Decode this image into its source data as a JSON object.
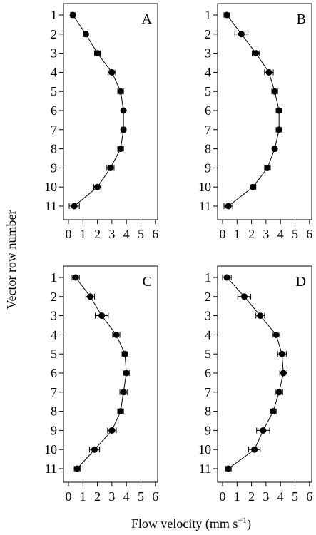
{
  "figure": {
    "ylabel": "Vector row number",
    "xlabel_main": "Flow velocity (mm s",
    "xlabel_sup": "−1",
    "xlabel_close": ")"
  },
  "chart_data": [
    {
      "type": "scatter",
      "panel_label": "A",
      "xlim": [
        0,
        6
      ],
      "x_ticks": [
        "0",
        "1",
        "2",
        "3",
        "4",
        "5",
        "6"
      ],
      "y_ticks": [
        "1",
        "2",
        "3",
        "4",
        "5",
        "6",
        "7",
        "8",
        "9",
        "10",
        "11"
      ],
      "y_reversed": true,
      "series": [
        {
          "rows": [
            1,
            2,
            3,
            4,
            5,
            6,
            7,
            8,
            9,
            10,
            11
          ],
          "velocity": [
            0.3,
            1.2,
            2.0,
            3.0,
            3.6,
            3.8,
            3.8,
            3.6,
            2.9,
            2.0,
            0.4
          ],
          "error": [
            0.15,
            0.15,
            0.2,
            0.25,
            0.2,
            0.15,
            0.15,
            0.2,
            0.25,
            0.25,
            0.35
          ]
        }
      ]
    },
    {
      "type": "scatter",
      "panel_label": "B",
      "xlim": [
        0,
        6
      ],
      "x_ticks": [
        "0",
        "1",
        "2",
        "3",
        "4",
        "5",
        "6"
      ],
      "y_ticks": [
        "1",
        "2",
        "3",
        "4",
        "5",
        "6",
        "7",
        "8",
        "9",
        "10",
        "11"
      ],
      "y_reversed": true,
      "series": [
        {
          "rows": [
            1,
            2,
            3,
            4,
            5,
            6,
            7,
            8,
            9,
            10,
            11
          ],
          "velocity": [
            0.3,
            1.3,
            2.3,
            3.2,
            3.6,
            3.9,
            3.9,
            3.6,
            3.1,
            2.1,
            0.4
          ],
          "error": [
            0.2,
            0.45,
            0.25,
            0.3,
            0.2,
            0.2,
            0.2,
            0.15,
            0.2,
            0.2,
            0.3
          ]
        }
      ]
    },
    {
      "type": "scatter",
      "panel_label": "C",
      "xlim": [
        0,
        6
      ],
      "x_ticks": [
        "0",
        "1",
        "2",
        "3",
        "4",
        "5",
        "6"
      ],
      "y_ticks": [
        "1",
        "2",
        "3",
        "4",
        "5",
        "6",
        "7",
        "8",
        "9",
        "10",
        "11"
      ],
      "y_reversed": true,
      "series": [
        {
          "rows": [
            1,
            2,
            3,
            4,
            5,
            6,
            7,
            8,
            9,
            10,
            11
          ],
          "velocity": [
            0.5,
            1.5,
            2.3,
            3.3,
            3.9,
            4.0,
            3.8,
            3.6,
            3.0,
            1.8,
            0.6
          ],
          "error": [
            0.25,
            0.3,
            0.45,
            0.25,
            0.2,
            0.2,
            0.25,
            0.2,
            0.3,
            0.35,
            0.2
          ]
        }
      ]
    },
    {
      "type": "scatter",
      "panel_label": "D",
      "xlim": [
        0,
        6
      ],
      "x_ticks": [
        "0",
        "1",
        "2",
        "3",
        "4",
        "5",
        "6"
      ],
      "y_ticks": [
        "1",
        "2",
        "3",
        "4",
        "5",
        "6",
        "7",
        "8",
        "9",
        "10",
        "11"
      ],
      "y_reversed": true,
      "series": [
        {
          "rows": [
            1,
            2,
            3,
            4,
            5,
            6,
            7,
            8,
            9,
            10,
            11
          ],
          "velocity": [
            0.3,
            1.5,
            2.6,
            3.7,
            4.1,
            4.2,
            3.9,
            3.5,
            2.8,
            2.2,
            0.4
          ],
          "error": [
            0.3,
            0.45,
            0.3,
            0.25,
            0.3,
            0.25,
            0.25,
            0.2,
            0.45,
            0.4,
            0.2
          ]
        }
      ]
    }
  ]
}
